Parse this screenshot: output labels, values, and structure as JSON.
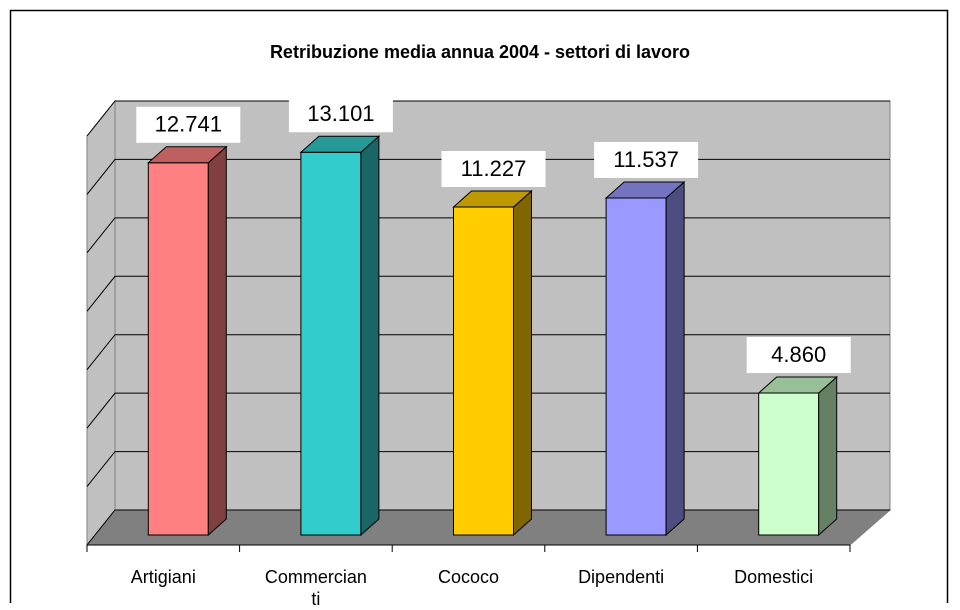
{
  "chart_data": {
    "type": "bar3d",
    "title": "Retribuzione media annua 2004 - settori di lavoro",
    "categories": [
      "Artigiani",
      "Commercianti",
      "Cococo",
      "Dipendenti",
      "Domestici"
    ],
    "values": [
      12741,
      13101,
      11227,
      11537,
      4860
    ],
    "value_labels": [
      "12.741",
      "13.101",
      "11.227",
      "11.537",
      "4.860"
    ],
    "colors": [
      "#FF8080",
      "#33CCCC",
      "#FFCC00",
      "#9999FF",
      "#CCFFCC"
    ],
    "ylim": [
      0,
      14000
    ],
    "yticks": [
      0,
      2000,
      4000,
      6000,
      8000,
      10000,
      12000,
      14000
    ],
    "grid": true
  }
}
